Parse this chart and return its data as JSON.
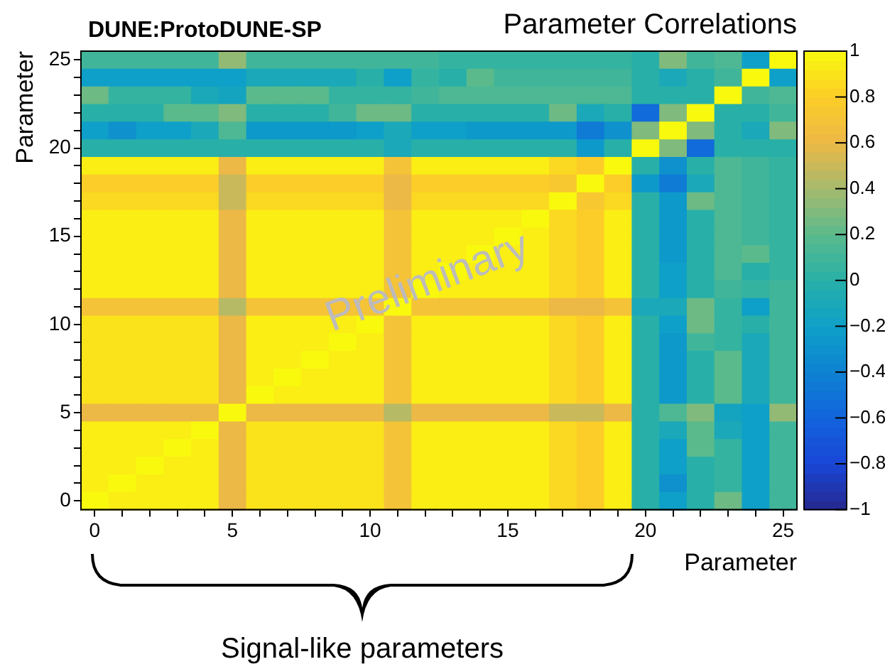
{
  "chart_data": {
    "type": "heatmap",
    "title": "Parameter Correlations",
    "xlabel": "Parameter",
    "ylabel": "Parameter",
    "annotations": [
      "DUNE:ProtoDUNE-SP",
      "Preliminary",
      "Signal-like parameters"
    ],
    "categories": [
      "0",
      null,
      null,
      null,
      null,
      "5",
      null,
      null,
      null,
      null,
      "10",
      null,
      null,
      null,
      null,
      "15",
      null,
      null,
      null,
      null,
      "20",
      null,
      null,
      null,
      null,
      "25"
    ],
    "y_categories": [
      "25",
      null,
      null,
      null,
      null,
      "20",
      null,
      null,
      null,
      null,
      "15",
      null,
      null,
      null,
      null,
      "10",
      null,
      null,
      null,
      null,
      "5",
      null,
      null,
      null,
      null,
      "0"
    ],
    "clim": [
      -1,
      1
    ],
    "cticks": [
      {
        "value": -1,
        "label": "−1"
      },
      {
        "value": -0.8,
        "label": "−0.8"
      },
      {
        "value": -0.6,
        "label": "−0.6"
      },
      {
        "value": -0.4,
        "label": "−0.4"
      },
      {
        "value": -0.2,
        "label": "−0.2"
      },
      0,
      0.2,
      0.4,
      0.6,
      0.8,
      1
    ],
    "cells": [
      [
        0.1,
        0.1,
        0.1,
        0.1,
        0.1,
        0.35,
        0.1,
        0.1,
        0.1,
        0.1,
        0.1,
        0.1,
        0.1,
        0.05,
        0.05,
        0.05,
        0.05,
        0.05,
        0.05,
        0.05,
        0,
        0.3,
        0.1,
        0.15,
        -0.2,
        1
      ],
      [
        -0.2,
        -0.2,
        -0.2,
        -0.2,
        -0.2,
        -0.2,
        -0.1,
        -0.1,
        -0.1,
        -0.1,
        0,
        -0.2,
        0.05,
        0,
        0.2,
        0.1,
        0.1,
        0.1,
        0.1,
        0.1,
        0,
        -0.1,
        0,
        0.1,
        1,
        -0.2
      ],
      [
        0.25,
        0.05,
        0.05,
        0.05,
        -0.1,
        -0.15,
        0.2,
        0.2,
        0.2,
        0.05,
        0.05,
        0.05,
        0.1,
        0.15,
        0.15,
        0.15,
        0.15,
        0.15,
        0.15,
        0.15,
        0,
        0,
        0,
        1,
        0.1,
        0.15
      ],
      [
        0,
        0,
        0,
        0.2,
        0.2,
        0.3,
        0,
        0,
        0,
        0.1,
        0.25,
        0.25,
        0,
        0,
        0,
        0,
        0,
        0.25,
        -0.1,
        0,
        -0.55,
        0.3,
        1,
        0,
        0,
        0.1
      ],
      [
        -0.2,
        -0.3,
        -0.2,
        -0.2,
        -0.1,
        0.15,
        -0.25,
        -0.25,
        -0.25,
        -0.25,
        -0.2,
        -0.1,
        -0.2,
        -0.2,
        -0.25,
        -0.25,
        -0.25,
        -0.25,
        -0.45,
        -0.3,
        0.3,
        1,
        0.3,
        0,
        -0.1,
        0.3
      ],
      [
        0,
        0,
        0,
        0,
        0,
        0,
        0,
        0,
        0,
        0,
        0,
        -0.1,
        0,
        0,
        0,
        0,
        0,
        0,
        -0.25,
        0,
        1,
        0.3,
        -0.55,
        0,
        0,
        0
      ],
      [
        0.95,
        0.95,
        0.95,
        0.95,
        0.95,
        0.6,
        0.95,
        0.95,
        0.95,
        0.95,
        0.95,
        0.7,
        0.95,
        0.95,
        0.95,
        0.95,
        0.95,
        0.85,
        0.8,
        1,
        0,
        -0.3,
        0,
        0.15,
        0.1,
        0.05
      ],
      [
        0.8,
        0.8,
        0.8,
        0.8,
        0.8,
        0.5,
        0.8,
        0.8,
        0.8,
        0.8,
        0.8,
        0.6,
        0.8,
        0.8,
        0.8,
        0.8,
        0.8,
        0.75,
        1,
        0.8,
        -0.25,
        -0.45,
        -0.1,
        0.15,
        0.1,
        0.05
      ],
      [
        0.85,
        0.85,
        0.85,
        0.85,
        0.85,
        0.5,
        0.85,
        0.85,
        0.85,
        0.85,
        0.85,
        0.6,
        0.85,
        0.85,
        0.85,
        0.85,
        0.85,
        1,
        0.75,
        0.85,
        0,
        -0.25,
        0.25,
        0.15,
        0.1,
        0.05
      ],
      [
        0.95,
        0.95,
        0.95,
        0.95,
        0.95,
        0.6,
        0.95,
        0.95,
        0.95,
        0.95,
        0.95,
        0.7,
        0.95,
        0.95,
        0.95,
        0.95,
        1,
        0.85,
        0.8,
        0.95,
        0,
        -0.25,
        0,
        0.15,
        0.1,
        0.05
      ],
      [
        0.95,
        0.95,
        0.95,
        0.95,
        0.95,
        0.6,
        0.95,
        0.95,
        0.95,
        0.95,
        0.95,
        0.7,
        0.95,
        0.95,
        0.95,
        1,
        0.95,
        0.85,
        0.8,
        0.95,
        0,
        -0.25,
        0,
        0.15,
        0.1,
        0.05
      ],
      [
        0.95,
        0.95,
        0.95,
        0.95,
        0.95,
        0.6,
        0.95,
        0.95,
        0.95,
        0.95,
        0.95,
        0.7,
        0.95,
        0.95,
        1,
        0.95,
        0.95,
        0.85,
        0.8,
        0.95,
        0,
        -0.25,
        0,
        0.15,
        0.2,
        0.05
      ],
      [
        0.95,
        0.95,
        0.95,
        0.95,
        0.95,
        0.6,
        0.95,
        0.95,
        0.95,
        0.95,
        0.95,
        0.7,
        0.95,
        1,
        0.95,
        0.95,
        0.95,
        0.85,
        0.8,
        0.95,
        0,
        -0.2,
        0,
        0.15,
        0,
        0.05
      ],
      [
        0.95,
        0.95,
        0.95,
        0.95,
        0.95,
        0.6,
        0.95,
        0.95,
        0.95,
        0.95,
        0.95,
        0.7,
        1,
        0.95,
        0.95,
        0.95,
        0.95,
        0.85,
        0.8,
        0.95,
        0,
        -0.2,
        0,
        0.1,
        0.05,
        0.1
      ],
      [
        0.7,
        0.7,
        0.7,
        0.7,
        0.7,
        0.45,
        0.7,
        0.7,
        0.7,
        0.7,
        0.7,
        1,
        0.7,
        0.7,
        0.7,
        0.7,
        0.7,
        0.6,
        0.6,
        0.7,
        -0.1,
        -0.1,
        0.25,
        0.05,
        -0.2,
        0.1
      ],
      [
        0.9,
        0.9,
        0.9,
        0.9,
        0.9,
        0.6,
        0.95,
        0.95,
        0.95,
        0.95,
        1,
        0.7,
        0.95,
        0.95,
        0.95,
        0.95,
        0.95,
        0.85,
        0.8,
        0.95,
        0,
        -0.2,
        0.25,
        0.05,
        0,
        0.1
      ],
      [
        0.9,
        0.9,
        0.9,
        0.9,
        0.9,
        0.6,
        0.95,
        0.95,
        0.95,
        1,
        0.95,
        0.7,
        0.95,
        0.95,
        0.95,
        0.95,
        0.95,
        0.85,
        0.8,
        0.95,
        0,
        -0.25,
        0.1,
        0.05,
        -0.1,
        0.1
      ],
      [
        0.9,
        0.9,
        0.9,
        0.9,
        0.9,
        0.6,
        0.95,
        0.95,
        1,
        0.95,
        0.95,
        0.7,
        0.95,
        0.95,
        0.95,
        0.95,
        0.95,
        0.85,
        0.8,
        0.95,
        0,
        -0.25,
        0,
        0.2,
        -0.1,
        0.1
      ],
      [
        0.9,
        0.9,
        0.9,
        0.9,
        0.9,
        0.6,
        0.95,
        1,
        0.95,
        0.95,
        0.95,
        0.7,
        0.95,
        0.95,
        0.95,
        0.95,
        0.95,
        0.85,
        0.8,
        0.95,
        0,
        -0.25,
        0,
        0.2,
        -0.1,
        0.1
      ],
      [
        0.9,
        0.9,
        0.9,
        0.9,
        0.9,
        0.6,
        1,
        0.95,
        0.95,
        0.95,
        0.95,
        0.7,
        0.95,
        0.95,
        0.95,
        0.95,
        0.95,
        0.85,
        0.8,
        0.95,
        0,
        -0.25,
        0,
        0.2,
        -0.1,
        0.1
      ],
      [
        0.6,
        0.6,
        0.6,
        0.6,
        0.6,
        1,
        0.6,
        0.6,
        0.6,
        0.6,
        0.6,
        0.45,
        0.6,
        0.6,
        0.6,
        0.6,
        0.6,
        0.5,
        0.5,
        0.6,
        0,
        0.15,
        0.3,
        -0.15,
        -0.2,
        0.35
      ],
      [
        0.95,
        0.95,
        0.95,
        0.95,
        1,
        0.6,
        0.9,
        0.9,
        0.9,
        0.9,
        0.9,
        0.7,
        0.95,
        0.95,
        0.95,
        0.95,
        0.95,
        0.85,
        0.8,
        0.95,
        0,
        -0.1,
        0.2,
        -0.1,
        -0.2,
        0.1
      ],
      [
        0.95,
        0.95,
        0.95,
        1,
        0.95,
        0.6,
        0.9,
        0.9,
        0.9,
        0.9,
        0.9,
        0.7,
        0.95,
        0.95,
        0.95,
        0.95,
        0.95,
        0.85,
        0.8,
        0.95,
        0,
        -0.2,
        0.2,
        0.05,
        -0.2,
        0.1
      ],
      [
        0.95,
        0.95,
        1,
        0.95,
        0.95,
        0.6,
        0.9,
        0.9,
        0.9,
        0.9,
        0.9,
        0.7,
        0.95,
        0.95,
        0.95,
        0.95,
        0.95,
        0.85,
        0.8,
        0.95,
        0,
        -0.2,
        0,
        0.05,
        -0.2,
        0.1
      ],
      [
        0.95,
        1,
        0.95,
        0.95,
        0.95,
        0.6,
        0.9,
        0.9,
        0.9,
        0.9,
        0.9,
        0.7,
        0.95,
        0.95,
        0.95,
        0.95,
        0.95,
        0.85,
        0.8,
        0.95,
        0,
        -0.3,
        0,
        0.05,
        -0.2,
        0.1
      ],
      [
        1,
        0.95,
        0.95,
        0.95,
        0.95,
        0.6,
        0.9,
        0.9,
        0.9,
        0.9,
        0.9,
        0.7,
        0.95,
        0.95,
        0.95,
        0.95,
        0.95,
        0.85,
        0.8,
        0.95,
        0,
        -0.2,
        0,
        0.25,
        -0.2,
        0.1
      ]
    ]
  }
}
